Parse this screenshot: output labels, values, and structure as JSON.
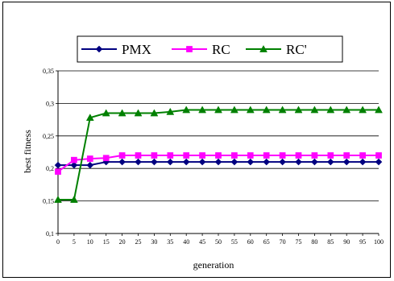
{
  "chart_data": {
    "type": "line",
    "xlabel": "generation",
    "ylabel": "best fitness",
    "x": [
      0,
      5,
      10,
      15,
      20,
      25,
      30,
      35,
      40,
      45,
      50,
      55,
      60,
      65,
      70,
      75,
      80,
      85,
      90,
      95,
      100
    ],
    "x_tick_labels": [
      "0",
      "5",
      "10",
      "15",
      "20",
      "25",
      "30",
      "35",
      "40",
      "45",
      "50",
      "55",
      "60",
      "65",
      "70",
      "75",
      "80",
      "85",
      "90",
      "95",
      "100"
    ],
    "ylim": [
      0.1,
      0.35
    ],
    "y_ticks": [
      0.1,
      0.15,
      0.2,
      0.25,
      0.3,
      0.35
    ],
    "y_tick_labels": [
      "0,1",
      "0,15",
      "0,2",
      "0,25",
      "0,3",
      "0,35"
    ],
    "grid": "horizontal",
    "legend_position": "top",
    "series": [
      {
        "name": "PMX",
        "color": "#000080",
        "marker": "diamond",
        "values": [
          0.205,
          0.205,
          0.205,
          0.21,
          0.21,
          0.21,
          0.21,
          0.21,
          0.21,
          0.21,
          0.21,
          0.21,
          0.21,
          0.21,
          0.21,
          0.21,
          0.21,
          0.21,
          0.21,
          0.21,
          0.21
        ]
      },
      {
        "name": "RC",
        "color": "#ff00ff",
        "marker": "square",
        "values": [
          0.195,
          0.213,
          0.215,
          0.216,
          0.22,
          0.22,
          0.22,
          0.22,
          0.22,
          0.22,
          0.22,
          0.22,
          0.22,
          0.22,
          0.22,
          0.22,
          0.22,
          0.22,
          0.22,
          0.22,
          0.22
        ]
      },
      {
        "name": "RC'",
        "color": "#008000",
        "marker": "triangle",
        "values": [
          0.152,
          0.152,
          0.278,
          0.285,
          0.285,
          0.285,
          0.285,
          0.287,
          0.29,
          0.29,
          0.29,
          0.29,
          0.29,
          0.29,
          0.29,
          0.29,
          0.29,
          0.29,
          0.29,
          0.29,
          0.29
        ]
      }
    ]
  }
}
